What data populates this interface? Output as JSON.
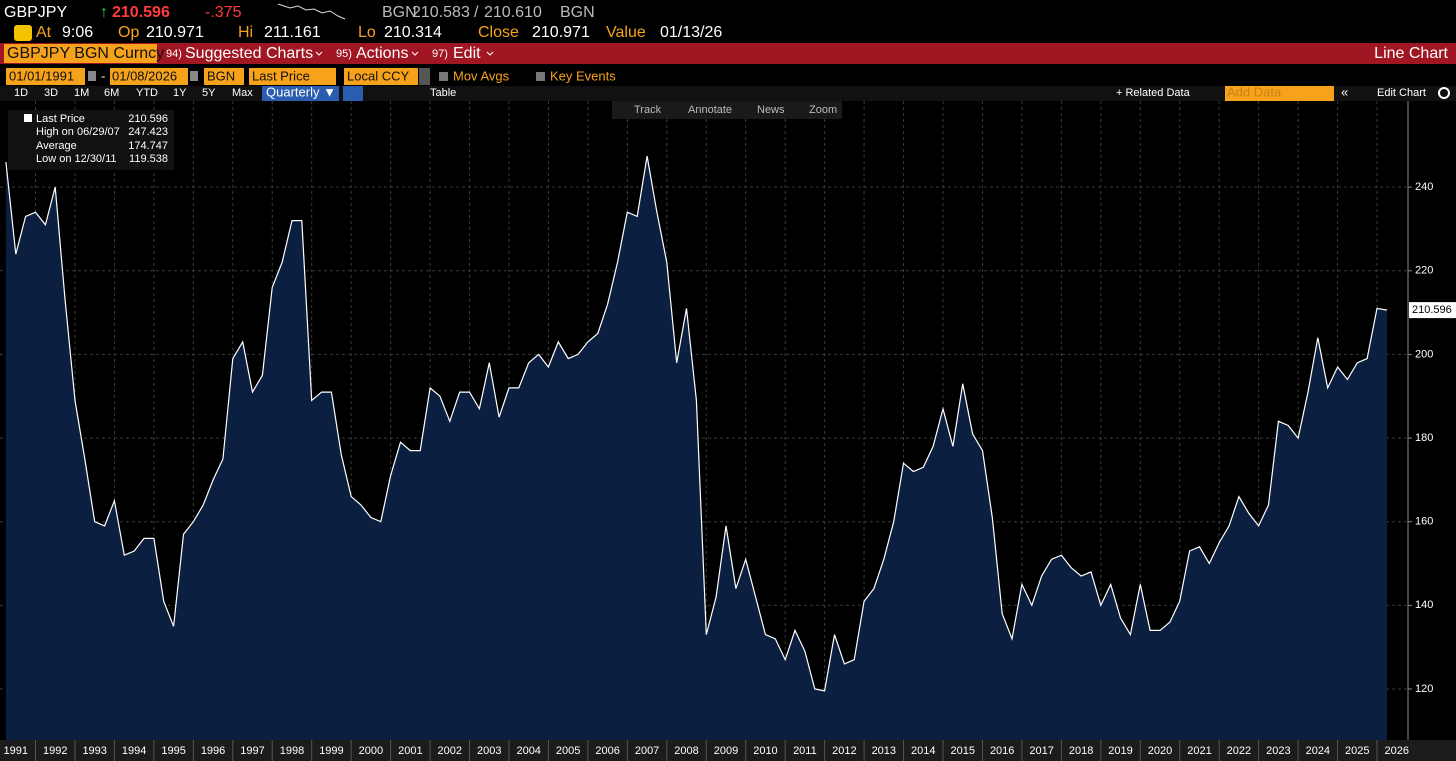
{
  "header": {
    "ticker": "GBPJPY",
    "last": "210.596",
    "change": "-.375",
    "bid_src": "BGN",
    "bid": "210.583",
    "sep": "/",
    "ask": "210.610",
    "ask_src": "BGN",
    "fields": [
      [
        "At",
        "9:06"
      ],
      [
        "Op",
        "210.971"
      ],
      [
        "Hi",
        "211.161"
      ],
      [
        "Lo",
        "210.314"
      ],
      [
        "Close",
        "210.971"
      ],
      [
        "Value",
        "01/13/26"
      ]
    ]
  },
  "menu": {
    "security": "GBPJPY BGN Curncy",
    "items": [
      [
        "94)",
        "Suggested Charts"
      ],
      [
        "95)",
        "Actions"
      ],
      [
        "97)",
        "Edit"
      ]
    ],
    "view": "Line Chart"
  },
  "controls": {
    "start": "01/01/1991",
    "dash": "-",
    "end": "01/08/2026",
    "source": "BGN",
    "field": "Last Price",
    "currency": "Local CCY",
    "mov_avgs": "Mov Avgs",
    "key_events": "Key Events"
  },
  "periods": {
    "items": [
      "1D",
      "3D",
      "1M",
      "6M",
      "YTD",
      "1Y",
      "5Y",
      "Max"
    ],
    "frequency": "Quarterly ▼",
    "table": "Table",
    "related": "+ Related Data",
    "add": "Add Data",
    "edit": "Edit Chart"
  },
  "toolbar": [
    "Track",
    "Annotate",
    "News",
    "Zoom"
  ],
  "legend": {
    "rows": [
      [
        "High on 06/29/07",
        "247.423"
      ],
      [
        "Average",
        "174.747"
      ],
      [
        "Low on 12/30/11",
        "119.538"
      ]
    ]
  },
  "chart_data": {
    "type": "area",
    "line_color": "#ffffff",
    "fill_color": "#0b2040",
    "grid": true,
    "xlim": [
      1991.1,
      2026.76
    ],
    "ylim": [
      107.8,
      260.6
    ],
    "xticks": [
      1991,
      1992,
      1993,
      1994,
      1995,
      1996,
      1997,
      1998,
      1999,
      2000,
      2001,
      2002,
      2003,
      2004,
      2005,
      2006,
      2007,
      2008,
      2009,
      2010,
      2011,
      2012,
      2013,
      2014,
      2015,
      2016,
      2017,
      2018,
      2019,
      2020,
      2021,
      2022,
      2023,
      2024,
      2025,
      2026
    ],
    "yticks": [
      120,
      140,
      160,
      180,
      200,
      220,
      240
    ],
    "x": [
      1991.25,
      1991.5,
      1991.75,
      1992,
      1992.25,
      1992.5,
      1992.75,
      1993,
      1993.25,
      1993.5,
      1993.75,
      1994,
      1994.25,
      1994.5,
      1994.75,
      1995,
      1995.25,
      1995.5,
      1995.75,
      1996,
      1996.25,
      1996.5,
      1996.75,
      1997,
      1997.25,
      1997.5,
      1997.75,
      1998,
      1998.25,
      1998.5,
      1998.75,
      1999,
      1999.25,
      1999.5,
      1999.75,
      2000,
      2000.25,
      2000.5,
      2000.75,
      2001,
      2001.25,
      2001.5,
      2001.75,
      2002,
      2002.25,
      2002.5,
      2002.75,
      2003,
      2003.25,
      2003.5,
      2003.75,
      2004,
      2004.25,
      2004.5,
      2004.75,
      2005,
      2005.25,
      2005.5,
      2005.75,
      2006,
      2006.25,
      2006.5,
      2006.75,
      2007,
      2007.25,
      2007.5,
      2007.75,
      2008,
      2008.25,
      2008.5,
      2008.75,
      2009,
      2009.25,
      2009.5,
      2009.75,
      2010,
      2010.25,
      2010.5,
      2010.75,
      2011,
      2011.25,
      2011.5,
      2011.75,
      2012,
      2012.25,
      2012.5,
      2012.75,
      2013,
      2013.25,
      2013.5,
      2013.75,
      2014,
      2014.25,
      2014.5,
      2014.75,
      2015,
      2015.25,
      2015.5,
      2015.75,
      2016,
      2016.25,
      2016.5,
      2016.75,
      2017,
      2017.25,
      2017.5,
      2017.75,
      2018,
      2018.25,
      2018.5,
      2018.75,
      2019,
      2019.25,
      2019.5,
      2019.75,
      2020,
      2020.25,
      2020.5,
      2020.75,
      2021,
      2021.25,
      2021.5,
      2021.75,
      2022,
      2022.25,
      2022.5,
      2022.75,
      2023,
      2023.25,
      2023.5,
      2023.75,
      2024,
      2024.25,
      2024.5,
      2024.75,
      2025,
      2025.25,
      2025.5,
      2025.75,
      2026,
      2026.25
    ],
    "series": [
      {
        "name": "Last Price",
        "values": [
          246,
          224,
          233,
          234,
          231,
          240,
          213,
          189,
          175,
          160,
          159,
          165,
          152,
          153,
          156,
          156,
          141,
          135,
          157,
          160,
          164,
          170,
          175,
          199,
          203,
          191,
          195,
          216,
          222,
          232,
          232,
          189,
          191,
          191,
          176,
          166,
          164,
          161,
          160,
          171,
          179,
          177,
          177,
          192,
          190,
          184,
          191,
          191,
          187,
          198,
          185,
          192,
          192,
          198,
          200,
          197,
          203,
          199,
          200,
          203,
          205,
          212,
          222,
          234,
          233,
          247.423,
          234,
          222,
          198,
          211,
          189,
          133,
          142,
          159,
          144,
          151,
          142,
          133,
          132,
          127,
          134,
          129,
          120,
          119.538,
          133,
          126,
          127,
          141,
          144,
          151,
          160,
          174,
          172,
          173,
          178,
          187,
          178,
          193,
          181,
          177,
          161,
          138,
          132,
          145,
          140,
          147,
          151,
          152,
          149,
          147,
          148,
          140,
          145,
          137,
          133,
          145,
          134,
          134,
          136,
          141,
          153,
          154,
          150,
          155,
          159,
          166,
          162,
          159,
          164,
          184,
          183,
          180,
          191,
          204,
          192,
          197,
          194,
          198,
          199,
          211,
          210.596
        ]
      }
    ]
  }
}
